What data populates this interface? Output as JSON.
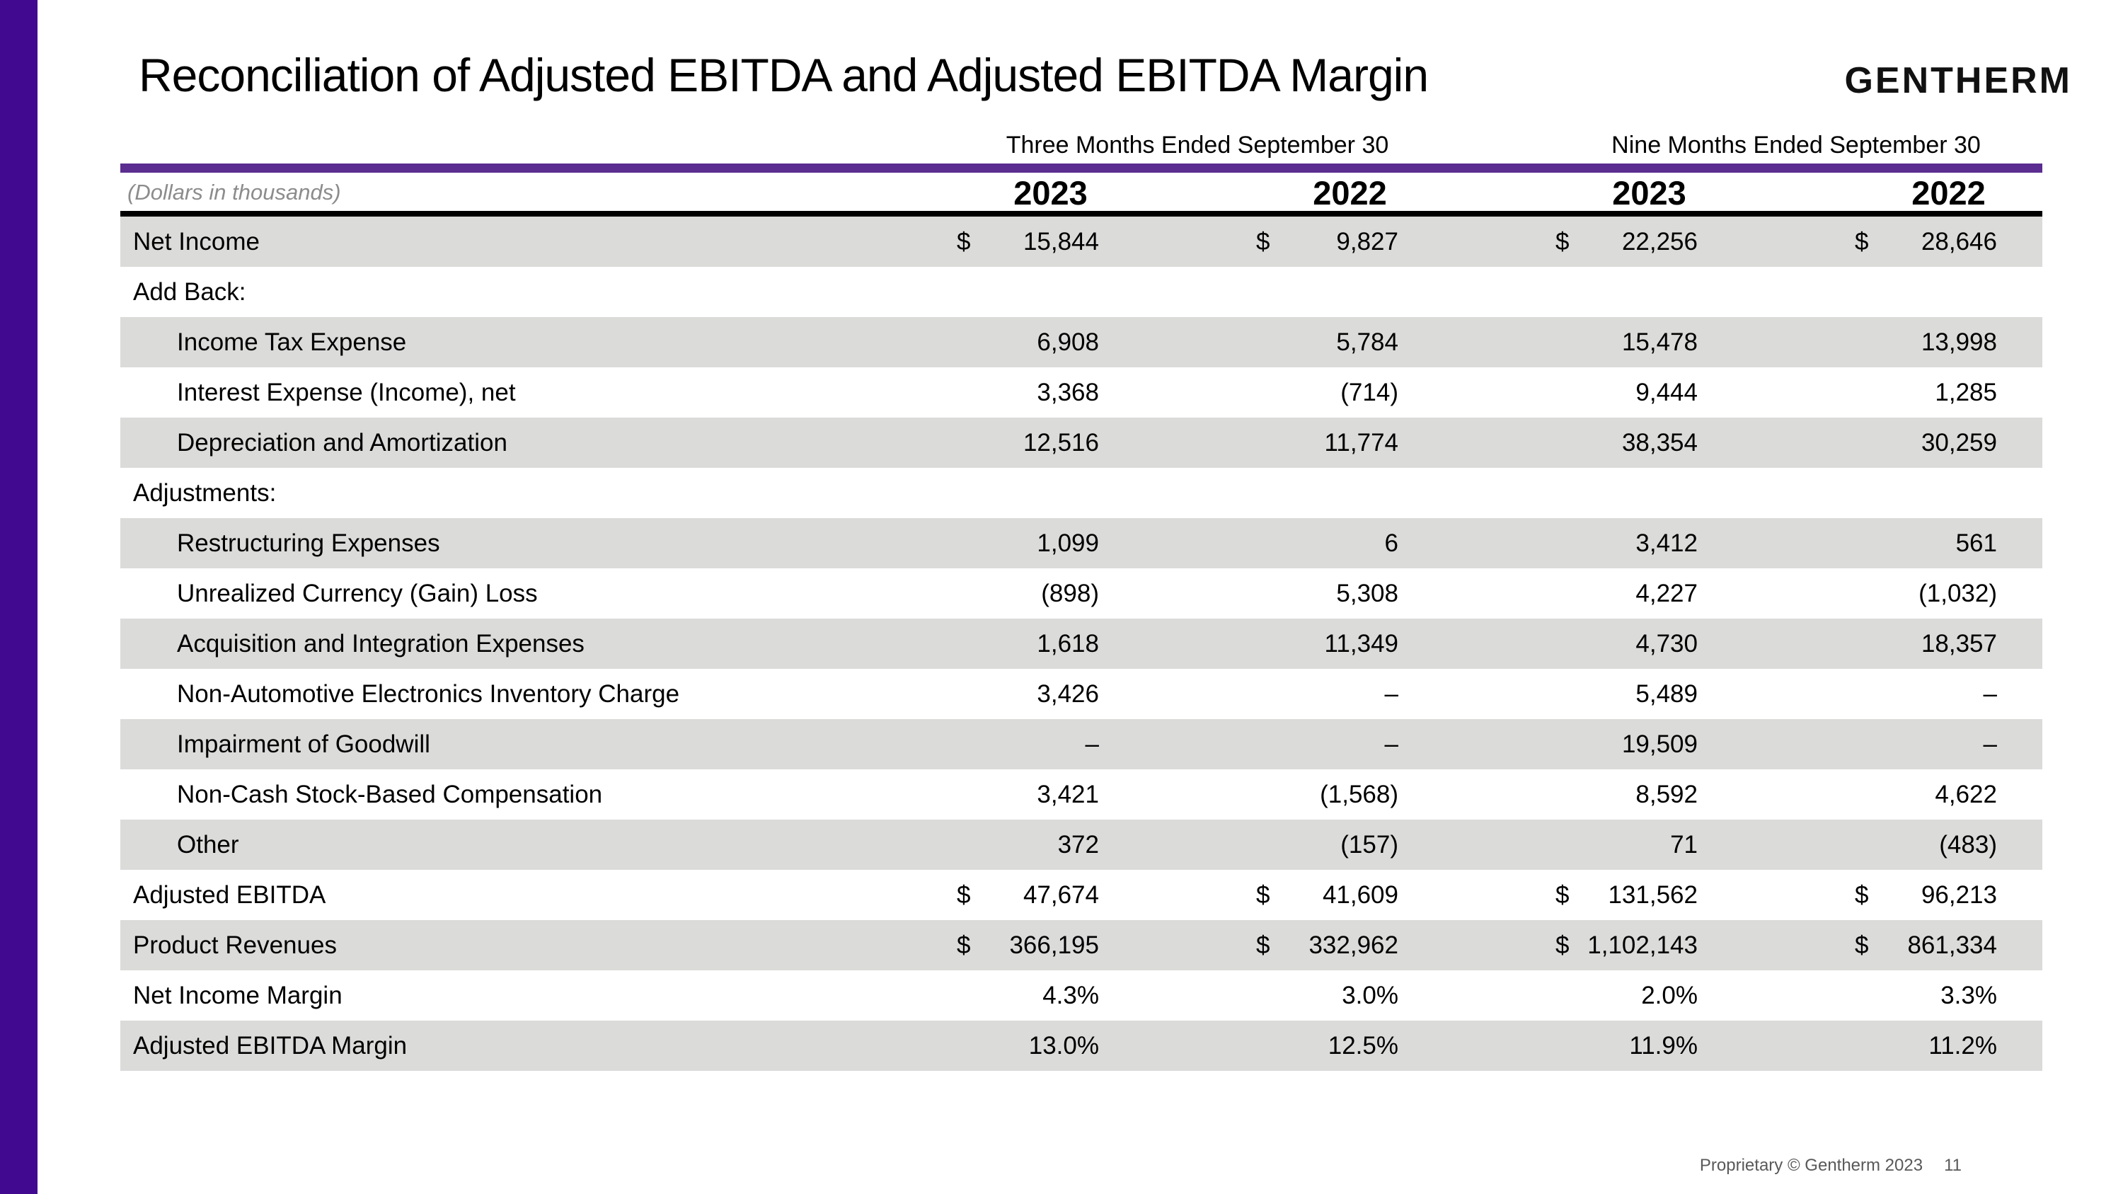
{
  "slide": {
    "title": "Reconciliation of Adjusted EBITDA and Adjusted EBITDA Margin",
    "logo": "GENTHERM",
    "footer": "Proprietary © Gentherm 2023",
    "page_number": "11"
  },
  "table": {
    "units_note": "(Dollars in thousands)",
    "currency_symbol": "$",
    "period_groups": [
      {
        "label": "Three Months Ended September 30"
      },
      {
        "label": "Nine Months Ended September 30"
      }
    ],
    "column_years": [
      "2023",
      "2022",
      "2023",
      "2022"
    ],
    "rows": [
      {
        "label": "Net Income",
        "indent": 0,
        "shaded": true,
        "currency": true,
        "values": [
          "15,844",
          "9,827",
          "22,256",
          "28,646"
        ]
      },
      {
        "label": "Add Back:",
        "indent": 0,
        "shaded": false,
        "currency": false,
        "values": [
          "",
          "",
          "",
          ""
        ]
      },
      {
        "label": "Income Tax Expense",
        "indent": 1,
        "shaded": true,
        "currency": false,
        "values": [
          "6,908",
          "5,784",
          "15,478",
          "13,998"
        ]
      },
      {
        "label": "Interest Expense (Income), net",
        "indent": 1,
        "shaded": false,
        "currency": false,
        "values": [
          "3,368",
          "(714)",
          "9,444",
          "1,285"
        ]
      },
      {
        "label": "Depreciation and Amortization",
        "indent": 1,
        "shaded": true,
        "currency": false,
        "values": [
          "12,516",
          "11,774",
          "38,354",
          "30,259"
        ]
      },
      {
        "label": "Adjustments:",
        "indent": 0,
        "shaded": false,
        "currency": false,
        "values": [
          "",
          "",
          "",
          ""
        ]
      },
      {
        "label": "Restructuring Expenses",
        "indent": 1,
        "shaded": true,
        "currency": false,
        "values": [
          "1,099",
          "6",
          "3,412",
          "561"
        ]
      },
      {
        "label": "Unrealized Currency (Gain) Loss",
        "indent": 1,
        "shaded": false,
        "currency": false,
        "values": [
          "(898)",
          "5,308",
          "4,227",
          "(1,032)"
        ]
      },
      {
        "label": "Acquisition and Integration Expenses",
        "indent": 1,
        "shaded": true,
        "currency": false,
        "values": [
          "1,618",
          "11,349",
          "4,730",
          "18,357"
        ]
      },
      {
        "label": "Non-Automotive Electronics Inventory Charge",
        "indent": 1,
        "shaded": false,
        "currency": false,
        "values": [
          "3,426",
          "–",
          "5,489",
          "–"
        ]
      },
      {
        "label": "Impairment of Goodwill",
        "indent": 1,
        "shaded": true,
        "currency": false,
        "values": [
          "–",
          "–",
          "19,509",
          "–"
        ]
      },
      {
        "label": "Non-Cash Stock-Based Compensation",
        "indent": 1,
        "shaded": false,
        "currency": false,
        "values": [
          "3,421",
          "(1,568)",
          "8,592",
          "4,622"
        ]
      },
      {
        "label": "Other",
        "indent": 1,
        "shaded": true,
        "currency": false,
        "values": [
          "372",
          "(157)",
          "71",
          "(483)"
        ]
      },
      {
        "label": "Adjusted EBITDA",
        "indent": 0,
        "shaded": false,
        "currency": true,
        "values": [
          "47,674",
          "41,609",
          "131,562",
          "96,213"
        ]
      },
      {
        "label": "Product Revenues",
        "indent": 0,
        "shaded": true,
        "currency": true,
        "values": [
          "366,195",
          "332,962",
          "1,102,143",
          "861,334"
        ]
      },
      {
        "label": "Net Income Margin",
        "indent": 0,
        "shaded": false,
        "currency": false,
        "values": [
          "4.3%",
          "3.0%",
          "2.0%",
          "3.3%"
        ]
      },
      {
        "label": "Adjusted EBITDA Margin",
        "indent": 0,
        "shaded": true,
        "currency": false,
        "values": [
          "13.0%",
          "12.5%",
          "11.9%",
          "11.2%"
        ]
      }
    ]
  },
  "colors": {
    "accent_bar": "#40098F",
    "header_rule": "#5B2D90",
    "row_shade": "#DBDBDA",
    "muted_text": "#8C8C8C",
    "footer_text": "#595959"
  }
}
